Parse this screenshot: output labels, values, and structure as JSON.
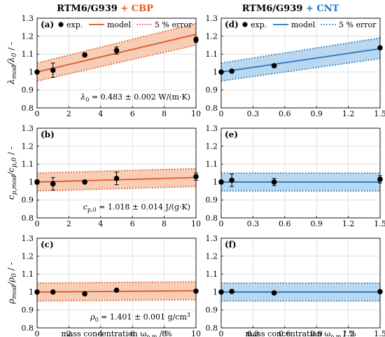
{
  "column_titles": [
    {
      "prefix": "RTM6/G939",
      "suffix": "+ CBP",
      "suffix_color": "#E3561F"
    },
    {
      "prefix": "RTM6/G939",
      "suffix": "+ CNT",
      "suffix_color": "#1F77C4"
    }
  ],
  "colors": {
    "cbp_line": "#E3561F",
    "cbp_fill": "#F7CDB6",
    "cnt_line": "#1F77C4",
    "cnt_fill": "#B9D7EE",
    "marker": "#000000",
    "grid": "#D0D0D0"
  },
  "legend": {
    "exp": "exp.",
    "model": "model",
    "error": "5 % error"
  },
  "xlabels": [
    {
      "main": "mass concentration ω",
      "sub": "p,m",
      "unit": " / %"
    },
    {
      "main": "mass concentration ω",
      "sub": "p,m",
      "unit": " / %"
    }
  ],
  "ylabels": [
    {
      "main": "λ",
      "sub": "mod",
      "mid": "/λ",
      "sub2": "0",
      "unit": " / -"
    },
    {
      "main": "c",
      "sub": "p,mod",
      "mid": "/c",
      "sub2": "p,0",
      "unit": " / -"
    },
    {
      "main": "ρ",
      "sub": "mod",
      "mid": "/ρ",
      "sub2": "0",
      "unit": " / -"
    }
  ],
  "annotations": [
    {
      "text": "λ",
      "sub": "0",
      "rest": " = 0.483 ± 0.002 W/(m·K)"
    },
    {
      "text": "c",
      "sub": "p,0",
      "rest": " = 1.018 ± 0.014 J/(g·K)"
    },
    {
      "text": "ρ",
      "sub": "0",
      "rest": " = 1.401 ± 0.001 g/cm",
      "sup": "3"
    }
  ],
  "chart_data": [
    {
      "id": "a",
      "panel_label": "(a)",
      "type": "line",
      "xlim": [
        0,
        10
      ],
      "ylim": [
        0.8,
        1.3
      ],
      "xticks": [
        0,
        2,
        4,
        6,
        8,
        10
      ],
      "yticks": [
        0.8,
        0.9,
        1.0,
        1.1,
        1.2,
        1.3
      ],
      "xtick_labels": [
        "0",
        "2",
        "4",
        "6",
        "8",
        "10"
      ],
      "ytick_labels": [
        "0.8",
        "0.9",
        "1",
        "1.1",
        "1.2",
        "1.3"
      ],
      "grid": true,
      "color_key": "cbp",
      "model": {
        "x": [
          0,
          10
        ],
        "y": [
          1.0,
          1.21
        ]
      },
      "error_band": {
        "lower": [
          0.95,
          1.15
        ],
        "upper": [
          1.05,
          1.27
        ]
      },
      "exp": {
        "x": [
          0,
          1,
          3,
          5,
          10
        ],
        "y": [
          1.0,
          1.01,
          1.095,
          1.12,
          1.18
        ],
        "err": [
          0.005,
          0.04,
          0.01,
          0.02,
          0.015
        ]
      }
    },
    {
      "id": "b",
      "panel_label": "(b)",
      "type": "line",
      "xlim": [
        0,
        10
      ],
      "ylim": [
        0.8,
        1.3
      ],
      "xticks": [
        0,
        2,
        4,
        6,
        8,
        10
      ],
      "yticks": [
        0.8,
        0.9,
        1.0,
        1.1,
        1.2,
        1.3
      ],
      "xtick_labels": [
        "0",
        "2",
        "4",
        "6",
        "8",
        "10"
      ],
      "ytick_labels": [
        "0.8",
        "0.9",
        "1",
        "1.1",
        "1.2",
        "1.3"
      ],
      "grid": true,
      "color_key": "cbp",
      "model": {
        "x": [
          0,
          10
        ],
        "y": [
          1.0,
          1.025
        ]
      },
      "error_band": {
        "lower": [
          0.95,
          0.975
        ],
        "upper": [
          1.05,
          1.075
        ]
      },
      "exp": {
        "x": [
          0,
          1,
          3,
          5,
          10
        ],
        "y": [
          1.0,
          0.99,
          1.0,
          1.02,
          1.03
        ],
        "err": [
          0.012,
          0.035,
          0.01,
          0.035,
          0.02
        ]
      }
    },
    {
      "id": "c",
      "panel_label": "(c)",
      "type": "line",
      "xlim": [
        0,
        10
      ],
      "ylim": [
        0.8,
        1.3
      ],
      "xticks": [
        0,
        2,
        4,
        6,
        8,
        10
      ],
      "yticks": [
        0.8,
        0.9,
        1.0,
        1.1,
        1.2,
        1.3
      ],
      "xtick_labels": [
        "0",
        "2",
        "4",
        "6",
        "8",
        "10"
      ],
      "ytick_labels": [
        "0.8",
        "0.9",
        "1",
        "1.1",
        "1.2",
        "1.3"
      ],
      "grid": true,
      "color_key": "cbp",
      "model": {
        "x": [
          0,
          10
        ],
        "y": [
          1.0,
          1.007
        ]
      },
      "error_band": {
        "lower": [
          0.95,
          0.957
        ],
        "upper": [
          1.05,
          1.057
        ]
      },
      "exp": {
        "x": [
          0,
          1,
          3,
          5,
          10
        ],
        "y": [
          1.0,
          1.0,
          0.99,
          1.01,
          1.005
        ],
        "err": [
          0.003,
          0.003,
          0.003,
          0.003,
          0.003
        ]
      }
    },
    {
      "id": "d",
      "panel_label": "(d)",
      "type": "line",
      "xlim": [
        0,
        1.5
      ],
      "ylim": [
        0.8,
        1.3
      ],
      "xticks": [
        0,
        0.3,
        0.6,
        0.9,
        1.2,
        1.5
      ],
      "yticks": [
        0.8,
        0.9,
        1.0,
        1.1,
        1.2,
        1.3
      ],
      "xtick_labels": [
        "0",
        "0.3",
        "0.6",
        "0.9",
        "1.2",
        "1.5"
      ],
      "ytick_labels": [
        "0.8",
        "0.9",
        "1",
        "1.1",
        "1.2",
        "1.3"
      ],
      "grid": true,
      "color_key": "cnt",
      "model": {
        "x": [
          0,
          1.5
        ],
        "y": [
          1.0,
          1.13
        ]
      },
      "error_band": {
        "lower": [
          0.95,
          1.075
        ],
        "upper": [
          1.05,
          1.19
        ]
      },
      "exp": {
        "x": [
          0,
          0.1,
          0.5,
          1.5
        ],
        "y": [
          1.0,
          1.005,
          1.035,
          1.135
        ],
        "err": [
          0.003,
          0.003,
          0.003,
          0.003
        ]
      }
    },
    {
      "id": "e",
      "panel_label": "(e)",
      "type": "line",
      "xlim": [
        0,
        1.5
      ],
      "ylim": [
        0.8,
        1.3
      ],
      "xticks": [
        0,
        0.3,
        0.6,
        0.9,
        1.2,
        1.5
      ],
      "yticks": [
        0.8,
        0.9,
        1.0,
        1.1,
        1.2,
        1.3
      ],
      "xtick_labels": [
        "0",
        "0.3",
        "0.6",
        "0.9",
        "1.2",
        "1.5"
      ],
      "ytick_labels": [
        "0.8",
        "0.9",
        "1",
        "1.1",
        "1.2",
        "1.3"
      ],
      "grid": true,
      "color_key": "cnt",
      "model": {
        "x": [
          0,
          1.5
        ],
        "y": [
          1.0,
          1.0
        ]
      },
      "error_band": {
        "lower": [
          0.95,
          0.95
        ],
        "upper": [
          1.05,
          1.05
        ]
      },
      "exp": {
        "x": [
          0,
          0.1,
          0.5,
          1.5
        ],
        "y": [
          1.0,
          1.01,
          1.0,
          1.015
        ],
        "err": [
          0.01,
          0.035,
          0.02,
          0.02
        ]
      }
    },
    {
      "id": "f",
      "panel_label": "(f)",
      "type": "line",
      "xlim": [
        0,
        1.5
      ],
      "ylim": [
        0.8,
        1.3
      ],
      "xticks": [
        0,
        0.3,
        0.6,
        0.9,
        1.2,
        1.5
      ],
      "yticks": [
        0.8,
        0.9,
        1.0,
        1.1,
        1.2,
        1.3
      ],
      "xtick_labels": [
        "0",
        "0.3",
        "0.6",
        "0.9",
        "1.2",
        "1.5"
      ],
      "ytick_labels": [
        "0.8",
        "0.9",
        "1",
        "1.1",
        "1.2",
        "1.3"
      ],
      "grid": true,
      "color_key": "cnt",
      "model": {
        "x": [
          0,
          1.5
        ],
        "y": [
          1.0,
          1.0
        ]
      },
      "error_band": {
        "lower": [
          0.95,
          0.95
        ],
        "upper": [
          1.05,
          1.05
        ]
      },
      "exp": {
        "x": [
          0,
          0.1,
          0.5,
          1.5
        ],
        "y": [
          1.0,
          1.003,
          0.995,
          1.002
        ],
        "err": [
          0.003,
          0.003,
          0.003,
          0.003
        ]
      }
    }
  ]
}
